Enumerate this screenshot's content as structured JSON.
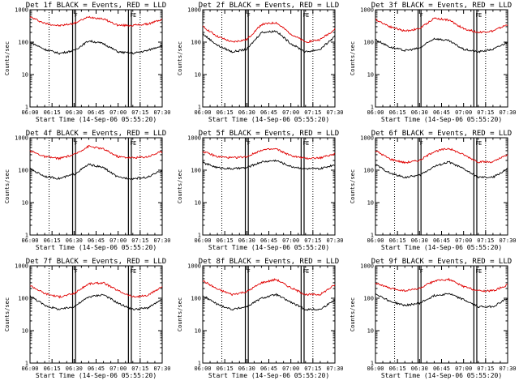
{
  "figure": {
    "colors": {
      "events": "#000000",
      "lld": "#e00000",
      "axes": "#000000",
      "background": "#ffffff"
    }
  },
  "chart_data": [
    {
      "type": "line",
      "title": "Det 1f BLACK = Events, RED = LLD",
      "xlabel": "Start Time (14-Sep-06 05:55:20)",
      "ylabel": "Counts/sec",
      "yscale": "log",
      "ylim": [
        1,
        1000
      ],
      "xlim": [
        "06:00",
        "07:30"
      ],
      "x_ticks": [
        "06:00",
        "06:15",
        "06:30",
        "06:45",
        "07:00",
        "07:15",
        "07:30"
      ],
      "y_ticks": [
        "1",
        "10",
        "100",
        "1000"
      ],
      "marker_labels": [
        "",
        "F",
        "F",
        "E"
      ],
      "markers_solid": [
        "06:29",
        "06:31",
        "07:07",
        "07:09"
      ],
      "markers_dotted": [
        "06:13",
        "07:15"
      ],
      "x": [
        "06:00",
        "06:10",
        "06:20",
        "06:30",
        "06:40",
        "06:50",
        "07:00",
        "07:10",
        "07:20",
        "07:30"
      ],
      "series": [
        {
          "name": "LLD",
          "values": [
            600,
            380,
            320,
            380,
            600,
            520,
            330,
            330,
            360,
            500
          ]
        },
        {
          "name": "Events",
          "values": [
            100,
            60,
            45,
            55,
            110,
            90,
            50,
            45,
            55,
            80
          ]
        }
      ],
      "grid": false
    },
    {
      "type": "line",
      "title": "Det 2f BLACK = Events, RED = LLD",
      "xlabel": "Start Time (14-Sep-06 05:55:20)",
      "ylabel": "Counts/sec",
      "yscale": "log",
      "ylim": [
        1,
        1000
      ],
      "xlim": [
        "06:00",
        "07:30"
      ],
      "x_ticks": [
        "06:00",
        "06:15",
        "06:30",
        "06:45",
        "07:00",
        "07:15",
        "07:30"
      ],
      "y_ticks": [
        "1",
        "10",
        "100",
        "1000"
      ],
      "marker_labels": [
        "",
        "F",
        "F",
        "E"
      ],
      "markers_solid": [
        "06:29",
        "06:31",
        "07:07",
        "07:09"
      ],
      "markers_dotted": [
        "06:13",
        "07:15"
      ],
      "x": [
        "06:00",
        "06:10",
        "06:20",
        "06:30",
        "06:40",
        "06:50",
        "07:00",
        "07:10",
        "07:20",
        "07:30"
      ],
      "series": [
        {
          "name": "LLD",
          "values": [
            300,
            150,
            100,
            120,
            350,
            400,
            180,
            100,
            120,
            250
          ]
        },
        {
          "name": "Events",
          "values": [
            180,
            80,
            50,
            60,
            200,
            220,
            90,
            50,
            60,
            150
          ]
        }
      ],
      "grid": false
    },
    {
      "type": "line",
      "title": "Det 3f BLACK = Events, RED = LLD",
      "xlabel": "Start Time (14-Sep-06 05:55:20)",
      "ylabel": "Counts/sec",
      "yscale": "log",
      "ylim": [
        1,
        1000
      ],
      "xlim": [
        "06:00",
        "07:30"
      ],
      "x_ticks": [
        "06:00",
        "06:15",
        "06:30",
        "06:45",
        "07:00",
        "07:15",
        "07:30"
      ],
      "y_ticks": [
        "1",
        "10",
        "100",
        "1000"
      ],
      "marker_labels": [
        "",
        "F",
        "F",
        "E"
      ],
      "markers_solid": [
        "06:29",
        "06:31",
        "07:07",
        "07:09"
      ],
      "markers_dotted": [
        "06:13",
        "07:15"
      ],
      "x": [
        "06:00",
        "06:10",
        "06:20",
        "06:30",
        "06:40",
        "06:50",
        "07:00",
        "07:10",
        "07:20",
        "07:30"
      ],
      "series": [
        {
          "name": "LLD",
          "values": [
            500,
            300,
            220,
            260,
            550,
            480,
            260,
            200,
            220,
            350
          ]
        },
        {
          "name": "Events",
          "values": [
            120,
            70,
            55,
            65,
            130,
            110,
            60,
            50,
            60,
            100
          ]
        }
      ],
      "grid": false
    },
    {
      "type": "line",
      "title": "Det 4f BLACK = Events, RED = LLD",
      "xlabel": "Start Time (14-Sep-06 05:55:20)",
      "ylabel": "Counts/sec",
      "yscale": "log",
      "ylim": [
        1,
        1000
      ],
      "xlim": [
        "06:00",
        "07:30"
      ],
      "x_ticks": [
        "06:00",
        "06:15",
        "06:30",
        "06:45",
        "07:00",
        "07:15",
        "07:30"
      ],
      "y_ticks": [
        "1",
        "10",
        "100",
        "1000"
      ],
      "marker_labels": [
        "",
        "F",
        "F",
        "E"
      ],
      "markers_solid": [
        "06:29",
        "06:31",
        "07:07",
        "07:09"
      ],
      "markers_dotted": [
        "06:13",
        "07:15"
      ],
      "x": [
        "06:00",
        "06:10",
        "06:20",
        "06:30",
        "06:40",
        "06:50",
        "07:00",
        "07:10",
        "07:20",
        "07:30"
      ],
      "series": [
        {
          "name": "LLD",
          "values": [
            400,
            260,
            230,
            300,
            550,
            450,
            260,
            240,
            260,
            380
          ]
        },
        {
          "name": "Events",
          "values": [
            110,
            65,
            55,
            75,
            150,
            120,
            60,
            55,
            60,
            100
          ]
        }
      ],
      "grid": false
    },
    {
      "type": "line",
      "title": "Det 5f BLACK = Events, RED = LLD",
      "xlabel": "Start Time (14-Sep-06 05:55:20)",
      "ylabel": "Counts/sec",
      "yscale": "log",
      "ylim": [
        1,
        1000
      ],
      "xlim": [
        "06:00",
        "07:30"
      ],
      "x_ticks": [
        "06:00",
        "06:15",
        "06:30",
        "06:45",
        "07:00",
        "07:15",
        "07:30"
      ],
      "y_ticks": [
        "1",
        "10",
        "100",
        "1000"
      ],
      "marker_labels": [
        "",
        "F",
        "F",
        "E"
      ],
      "markers_solid": [
        "06:29",
        "06:31",
        "07:07",
        "07:09"
      ],
      "markers_dotted": [
        "06:13",
        "07:15"
      ],
      "x": [
        "06:00",
        "06:10",
        "06:20",
        "06:30",
        "06:40",
        "06:50",
        "07:00",
        "07:10",
        "07:20",
        "07:30"
      ],
      "series": [
        {
          "name": "LLD",
          "values": [
            380,
            260,
            240,
            260,
            420,
            450,
            280,
            230,
            240,
            320
          ]
        },
        {
          "name": "Events",
          "values": [
            170,
            120,
            110,
            120,
            180,
            200,
            130,
            110,
            110,
            150
          ]
        }
      ],
      "grid": false
    },
    {
      "type": "line",
      "title": "Det 6f BLACK = Events, RED = LLD",
      "xlabel": "Start Time (14-Sep-06 05:55:20)",
      "ylabel": "Counts/sec",
      "yscale": "log",
      "ylim": [
        1,
        1000
      ],
      "xlim": [
        "06:00",
        "07:30"
      ],
      "x_ticks": [
        "06:00",
        "06:15",
        "06:30",
        "06:45",
        "07:00",
        "07:15",
        "07:30"
      ],
      "y_ticks": [
        "1",
        "10",
        "100",
        "1000"
      ],
      "marker_labels": [
        "",
        "F",
        "F",
        "E"
      ],
      "markers_solid": [
        "06:29",
        "06:31",
        "07:07",
        "07:09"
      ],
      "markers_dotted": [
        "06:13",
        "07:15"
      ],
      "x": [
        "06:00",
        "06:10",
        "06:20",
        "06:30",
        "06:40",
        "06:50",
        "07:00",
        "07:10",
        "07:20",
        "07:30"
      ],
      "series": [
        {
          "name": "LLD",
          "values": [
            400,
            220,
            170,
            200,
            380,
            470,
            300,
            180,
            180,
            300
          ]
        },
        {
          "name": "Events",
          "values": [
            150,
            80,
            60,
            70,
            130,
            180,
            110,
            60,
            60,
            110
          ]
        }
      ],
      "grid": false
    },
    {
      "type": "line",
      "title": "Det 7f BLACK = Events, RED = LLD",
      "xlabel": "Start Time (14-Sep-06 05:55:20)",
      "ylabel": "Counts/sec",
      "yscale": "log",
      "ylim": [
        1,
        1000
      ],
      "xlim": [
        "06:00",
        "07:30"
      ],
      "x_ticks": [
        "06:00",
        "06:15",
        "06:30",
        "06:45",
        "07:00",
        "07:15",
        "07:30"
      ],
      "y_ticks": [
        "1",
        "10",
        "100",
        "1000"
      ],
      "marker_labels": [
        "",
        "F",
        "F",
        "E"
      ],
      "markers_solid": [
        "06:29",
        "06:31",
        "07:07",
        "07:09"
      ],
      "markers_dotted": [
        "06:13",
        "07:15"
      ],
      "x": [
        "06:00",
        "06:10",
        "06:20",
        "06:30",
        "06:40",
        "06:50",
        "07:00",
        "07:10",
        "07:20",
        "07:30"
      ],
      "series": [
        {
          "name": "LLD",
          "values": [
            250,
            140,
            110,
            140,
            280,
            300,
            170,
            110,
            120,
            230
          ]
        },
        {
          "name": "Events",
          "values": [
            120,
            60,
            45,
            55,
            110,
            130,
            70,
            45,
            50,
            90
          ]
        }
      ],
      "grid": false
    },
    {
      "type": "line",
      "title": "Det 8f BLACK = Events, RED = LLD",
      "xlabel": "Start Time (14-Sep-06 05:55:20)",
      "ylabel": "Counts/sec",
      "yscale": "log",
      "ylim": [
        1,
        1000
      ],
      "xlim": [
        "06:00",
        "07:30"
      ],
      "x_ticks": [
        "06:00",
        "06:15",
        "06:30",
        "06:45",
        "07:00",
        "07:15",
        "07:30"
      ],
      "y_ticks": [
        "1",
        "10",
        "100",
        "1000"
      ],
      "marker_labels": [
        "",
        "F",
        "F",
        "E"
      ],
      "markers_solid": [
        "06:29",
        "06:31",
        "07:07",
        "07:09"
      ],
      "markers_dotted": [
        "06:13",
        "07:15"
      ],
      "x": [
        "06:00",
        "06:10",
        "06:20",
        "06:30",
        "06:40",
        "06:50",
        "07:00",
        "07:10",
        "07:20",
        "07:30"
      ],
      "series": [
        {
          "name": "LLD",
          "values": [
            350,
            190,
            130,
            160,
            300,
            380,
            210,
            130,
            130,
            260
          ]
        },
        {
          "name": "Events",
          "values": [
            120,
            65,
            45,
            55,
            100,
            130,
            75,
            45,
            45,
            90
          ]
        }
      ],
      "grid": false
    },
    {
      "type": "line",
      "title": "Det 9f BLACK = Events, RED = LLD",
      "xlabel": "Start Time (14-Sep-06 05:55:20)",
      "ylabel": "Counts/sec",
      "yscale": "log",
      "ylim": [
        1,
        1000
      ],
      "xlim": [
        "06:00",
        "07:30"
      ],
      "x_ticks": [
        "06:00",
        "06:15",
        "06:30",
        "06:45",
        "07:00",
        "07:15",
        "07:30"
      ],
      "y_ticks": [
        "1",
        "10",
        "100",
        "1000"
      ],
      "marker_labels": [
        "",
        "F",
        "F",
        "E"
      ],
      "markers_solid": [
        "06:29",
        "06:31",
        "07:07",
        "07:09"
      ],
      "markers_dotted": [
        "06:13",
        "07:15"
      ],
      "x": [
        "06:00",
        "06:10",
        "06:20",
        "06:30",
        "06:40",
        "06:50",
        "07:00",
        "07:10",
        "07:20",
        "07:30"
      ],
      "series": [
        {
          "name": "LLD",
          "values": [
            300,
            200,
            170,
            200,
            340,
            380,
            230,
            170,
            170,
            260
          ]
        },
        {
          "name": "Events",
          "values": [
            140,
            80,
            60,
            70,
            120,
            140,
            90,
            55,
            55,
            100
          ]
        }
      ],
      "grid": false
    }
  ]
}
